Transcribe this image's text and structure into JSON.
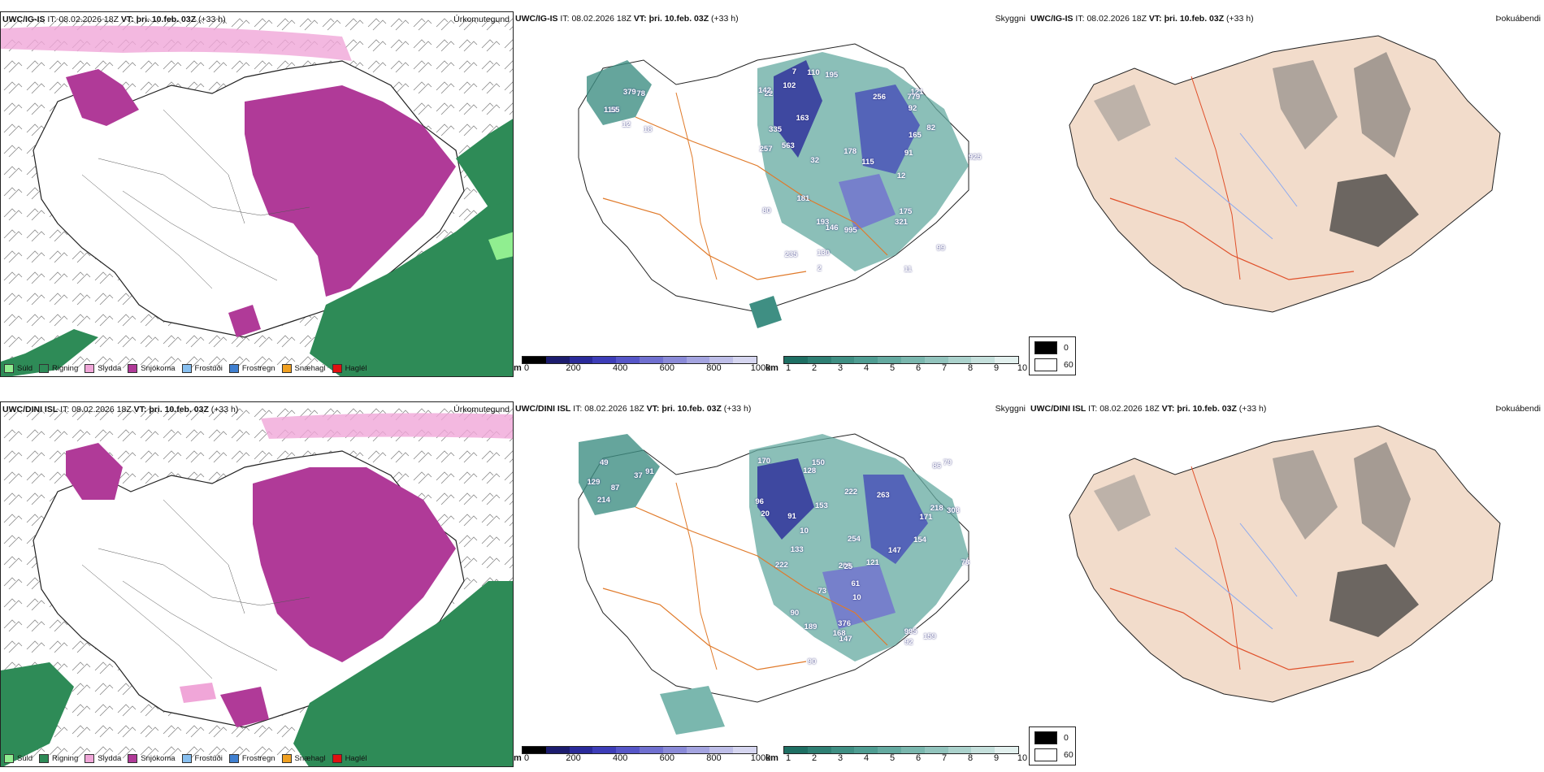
{
  "panels": [
    {
      "id": "top-precip",
      "model": "UWC/IG-IS",
      "it_label": "IT:",
      "it_value": "08.02.2026 18Z",
      "vt_label": "VT:",
      "vt_value": "þri. 10.feb. 03Z",
      "lead": "(+33 h)",
      "title": "Úrkomutegund"
    },
    {
      "id": "top-cloud",
      "model": "UWC/IG-IS",
      "it_label": "IT:",
      "it_value": "08.02.2026 18Z",
      "vt_label": "VT:",
      "vt_value": "þri. 10.feb. 03Z",
      "lead": "(+33 h)",
      "title": "Skyggni"
    },
    {
      "id": "top-fog",
      "model": "UWC/IG-IS",
      "it_label": "IT:",
      "it_value": "08.02.2026 18Z",
      "vt_label": "VT:",
      "vt_value": "þri. 10.feb. 03Z",
      "lead": "(+33 h)",
      "title": "Þokuábendi"
    },
    {
      "id": "bottom-precip",
      "model": "UWC/DINI ISL",
      "it_label": "IT:",
      "it_value": "08.02.2026 18Z",
      "vt_label": "VT:",
      "vt_value": "þri. 10.feb. 03Z",
      "lead": "(+33 h)",
      "title": "Úrkomutegund"
    },
    {
      "id": "bottom-cloud",
      "model": "UWC/DINI ISL",
      "it_label": "IT:",
      "it_value": "08.02.2026 18Z",
      "vt_label": "VT:",
      "vt_value": "þri. 10.feb. 03Z",
      "lead": "(+33 h)",
      "title": "Skyggni"
    },
    {
      "id": "bottom-fog",
      "model": "UWC/DINI ISL",
      "it_label": "IT:",
      "it_value": "08.02.2026 18Z",
      "vt_label": "VT:",
      "vt_value": "þri. 10.feb. 03Z",
      "lead": "(+33 h)",
      "title": "Þokuábendi"
    }
  ],
  "precip_legend": [
    {
      "label": "Súld",
      "color": "#90ee90"
    },
    {
      "label": "Rigning",
      "color": "#2e8b57"
    },
    {
      "label": "Slydda",
      "color": "#f0a6d8"
    },
    {
      "label": "Snjókoma",
      "color": "#b03a98"
    },
    {
      "label": "Frostúði",
      "color": "#87bff0"
    },
    {
      "label": "Frostregn",
      "color": "#3f7fd0"
    },
    {
      "label": "Snæhagl",
      "color": "#f0a020"
    },
    {
      "label": "Haglél",
      "color": "#e01010"
    }
  ],
  "cloudbase_scale": {
    "unit": "m",
    "ticks": [
      "0",
      "200",
      "400",
      "600",
      "800",
      "1000"
    ],
    "colors": [
      "#000000",
      "#1c1c6e",
      "#2a2a9a",
      "#3d3db8",
      "#5656c8",
      "#7070d0",
      "#8a8ad8",
      "#a4a4e0",
      "#bebee8",
      "#d6d6f0"
    ]
  },
  "visibility_scale": {
    "unit": "km",
    "ticks": [
      "1",
      "2",
      "3",
      "4",
      "5",
      "6",
      "7",
      "8",
      "9",
      "10"
    ],
    "colors": [
      "#1e6f63",
      "#2e7f73",
      "#3f8f83",
      "#4f9d92",
      "#64aaa0",
      "#7ab7ae",
      "#92c4bd",
      "#abd2cc",
      "#c5e0dc",
      "#e2f0ee"
    ]
  },
  "fog_legend": [
    {
      "label": "0",
      "color": "#000000"
    },
    {
      "label": "60",
      "color": "#ffffff"
    }
  ],
  "top_cloudbase_labels": [
    "379",
    "18",
    "12",
    "78",
    "113",
    "55",
    "99",
    "130",
    "193",
    "102",
    "195",
    "12",
    "925",
    "91",
    "82",
    "92",
    "165",
    "257",
    "321",
    "121",
    "779",
    "563",
    "22",
    "235",
    "115",
    "80",
    "11",
    "335",
    "142",
    "175",
    "163",
    "146",
    "178",
    "181",
    "2",
    "32",
    "995",
    "110",
    "256",
    "7"
  ],
  "bottom_cloudbase_labels": [
    "214",
    "87",
    "91",
    "37",
    "129",
    "49",
    "86",
    "78",
    "90",
    "218",
    "263",
    "222",
    "96",
    "90",
    "170",
    "171",
    "222",
    "147",
    "376",
    "995",
    "79",
    "128",
    "150",
    "159",
    "147",
    "133",
    "10",
    "308",
    "154",
    "189",
    "168",
    "153",
    "61",
    "209",
    "91",
    "254",
    "73",
    "92",
    "121",
    "25",
    "10",
    "20"
  ],
  "colors": {
    "rain": "#2e8b57",
    "snow": "#b03a98",
    "sleet": "#f0a6d8",
    "drizzle": "#90ee90",
    "land_fog": "#f2dccb",
    "roads": "#e07a2a",
    "rivers": "#8aa8f0",
    "coast": "#222222"
  }
}
